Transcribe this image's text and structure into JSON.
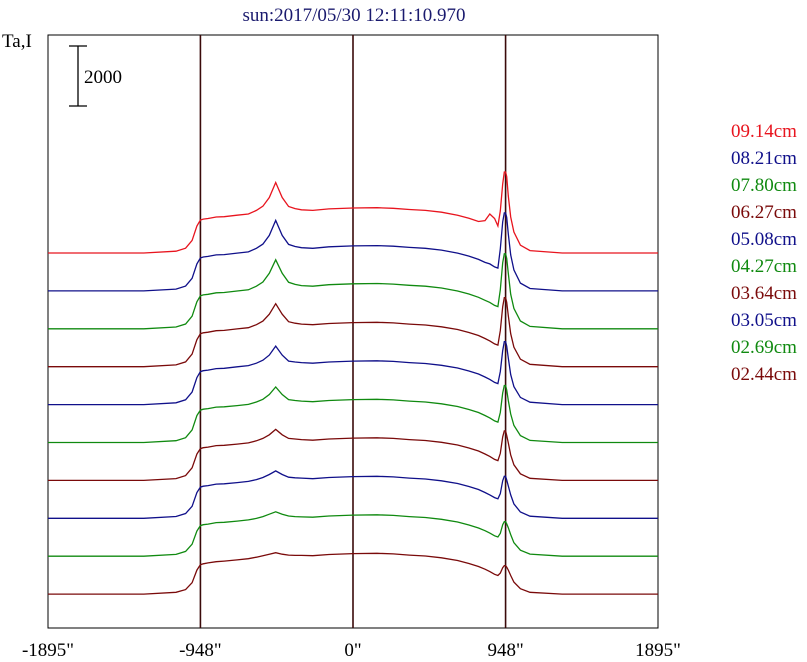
{
  "chart_data": {
    "type": "line",
    "title": "sun:2017/05/30 12:11:10.970",
    "ylabel": "Ta,I",
    "scale_bar_label": "2000",
    "scale_bar_value": 2000,
    "xlim": [
      -1895,
      1895
    ],
    "xticks": [
      {
        "value": -1895,
        "label": "-1895\""
      },
      {
        "value": -948,
        "label": "-948\""
      },
      {
        "value": 0,
        "label": "0\""
      },
      {
        "value": 948,
        "label": "948\""
      },
      {
        "value": 1895,
        "label": "1895\""
      }
    ],
    "vertical_lines": [
      -948,
      0,
      948
    ],
    "profile_x": [
      -1895,
      -1300,
      -1100,
      -1040,
      -1000,
      -970,
      -948,
      -930,
      -900,
      -850,
      -800,
      -720,
      -650,
      -600,
      -560,
      -520,
      -480,
      -440,
      -400,
      -360,
      -320,
      -250,
      -150,
      0,
      150,
      250,
      350,
      450,
      550,
      650,
      720,
      780,
      820,
      850,
      880,
      900,
      915,
      930,
      940,
      948,
      955,
      965,
      980,
      1000,
      1040,
      1100,
      1300,
      1895
    ],
    "series": [
      {
        "name": "09.14cm",
        "color": "#e8141e",
        "values": [
          0,
          0,
          60,
          160,
          420,
          900,
          1100,
          1130,
          1150,
          1200,
          1210,
          1260,
          1300,
          1420,
          1560,
          1850,
          2350,
          1850,
          1550,
          1480,
          1440,
          1420,
          1470,
          1500,
          1510,
          1490,
          1450,
          1420,
          1360,
          1260,
          1160,
          1050,
          1080,
          1300,
          1150,
          900,
          1400,
          2300,
          2700,
          2700,
          2550,
          1900,
          1200,
          700,
          260,
          80,
          0,
          0
        ]
      },
      {
        "name": "08.21cm",
        "color": "#10108a",
        "values": [
          0,
          0,
          60,
          160,
          420,
          900,
          1100,
          1130,
          1150,
          1200,
          1210,
          1260,
          1300,
          1420,
          1560,
          1850,
          2350,
          1850,
          1550,
          1480,
          1440,
          1420,
          1470,
          1500,
          1510,
          1490,
          1450,
          1420,
          1360,
          1260,
          1160,
          1050,
          950,
          900,
          800,
          760,
          1400,
          2300,
          2600,
          2600,
          2450,
          1900,
          1200,
          700,
          260,
          80,
          0,
          0
        ]
      },
      {
        "name": "07.80cm",
        "color": "#108a10",
        "values": [
          0,
          0,
          60,
          160,
          420,
          900,
          1100,
          1130,
          1150,
          1200,
          1210,
          1260,
          1300,
          1420,
          1560,
          1850,
          2300,
          1850,
          1550,
          1480,
          1440,
          1420,
          1470,
          1500,
          1510,
          1490,
          1450,
          1420,
          1360,
          1260,
          1160,
          1050,
          950,
          880,
          780,
          740,
          1300,
          2200,
          2500,
          2500,
          2350,
          1850,
          1150,
          680,
          260,
          80,
          0,
          0
        ]
      },
      {
        "name": "06.27cm",
        "color": "#7a0a0a",
        "values": [
          0,
          0,
          60,
          160,
          420,
          900,
          1100,
          1130,
          1150,
          1200,
          1210,
          1260,
          1300,
          1400,
          1520,
          1750,
          2100,
          1750,
          1500,
          1450,
          1420,
          1400,
          1440,
          1470,
          1480,
          1460,
          1420,
          1390,
          1330,
          1240,
          1140,
          1040,
          940,
          860,
          760,
          720,
          1200,
          2000,
          2300,
          2300,
          2150,
          1700,
          1100,
          650,
          250,
          80,
          0,
          0
        ]
      },
      {
        "name": "05.08cm",
        "color": "#10108a",
        "values": [
          0,
          0,
          60,
          160,
          420,
          900,
          1100,
          1130,
          1150,
          1200,
          1210,
          1260,
          1300,
          1380,
          1480,
          1650,
          1950,
          1650,
          1450,
          1420,
          1400,
          1380,
          1420,
          1450,
          1460,
          1440,
          1400,
          1370,
          1310,
          1220,
          1120,
          1020,
          920,
          840,
          740,
          700,
          1100,
          1800,
          2100,
          2100,
          1950,
          1550,
          1000,
          600,
          240,
          80,
          0,
          0
        ]
      },
      {
        "name": "04.27cm",
        "color": "#108a10",
        "values": [
          0,
          0,
          60,
          160,
          420,
          900,
          1080,
          1110,
          1130,
          1180,
          1190,
          1230,
          1270,
          1350,
          1440,
          1600,
          1850,
          1600,
          1430,
          1400,
          1380,
          1360,
          1400,
          1430,
          1440,
          1420,
          1380,
          1350,
          1290,
          1200,
          1100,
          1000,
          900,
          820,
          720,
          680,
          1000,
          1650,
          1900,
          1900,
          1750,
          1400,
          950,
          570,
          230,
          70,
          0,
          0
        ]
      },
      {
        "name": "03.64cm",
        "color": "#7a0a0a",
        "values": [
          0,
          0,
          60,
          160,
          420,
          880,
          1060,
          1090,
          1110,
          1160,
          1170,
          1210,
          1250,
          1320,
          1400,
          1520,
          1700,
          1520,
          1400,
          1380,
          1360,
          1340,
          1380,
          1410,
          1420,
          1400,
          1360,
          1330,
          1270,
          1180,
          1080,
          980,
          880,
          800,
          700,
          660,
          900,
          1450,
          1650,
          1650,
          1500,
          1250,
          850,
          520,
          220,
          70,
          0,
          0
        ]
      },
      {
        "name": "03.05cm",
        "color": "#10108a",
        "values": [
          0,
          0,
          60,
          160,
          400,
          860,
          1040,
          1070,
          1090,
          1140,
          1150,
          1190,
          1230,
          1290,
          1360,
          1460,
          1580,
          1460,
          1370,
          1350,
          1340,
          1320,
          1360,
          1390,
          1400,
          1380,
          1340,
          1310,
          1250,
          1160,
          1060,
          960,
          860,
          780,
          690,
          650,
          820,
          1250,
          1400,
          1400,
          1280,
          1080,
          780,
          480,
          210,
          70,
          0,
          0
        ]
      },
      {
        "name": "02.69cm",
        "color": "#108a10",
        "values": [
          0,
          0,
          60,
          160,
          400,
          840,
          1020,
          1050,
          1070,
          1120,
          1130,
          1170,
          1210,
          1260,
          1320,
          1400,
          1480,
          1400,
          1340,
          1320,
          1310,
          1300,
          1340,
          1370,
          1380,
          1360,
          1320,
          1290,
          1230,
          1140,
          1040,
          940,
          850,
          770,
          680,
          640,
          760,
          1050,
          1150,
          1150,
          1080,
          950,
          720,
          450,
          200,
          70,
          0,
          0
        ]
      },
      {
        "name": "02.44cm",
        "color": "#7a0a0a",
        "values": [
          0,
          0,
          60,
          150,
          380,
          800,
          980,
          1010,
          1040,
          1080,
          1100,
          1140,
          1180,
          1230,
          1280,
          1330,
          1380,
          1330,
          1300,
          1290,
          1290,
          1280,
          1320,
          1350,
          1360,
          1340,
          1300,
          1270,
          1210,
          1120,
          1020,
          920,
          830,
          750,
          660,
          620,
          700,
          880,
          950,
          950,
          900,
          800,
          620,
          400,
          180,
          60,
          0,
          0
        ]
      }
    ],
    "grid": false,
    "legend_position": "right"
  }
}
